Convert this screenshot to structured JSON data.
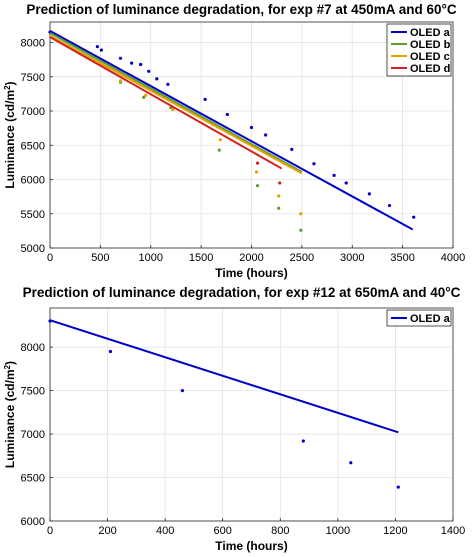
{
  "chart_data": [
    {
      "type": "scatter",
      "title": "Prediction of luminance degradation, for exp #7 at 450mA and 60°C",
      "xlabel": "Time (hours)",
      "ylabel_main": "Luminance (cd/m",
      "ylabel_sup": "2",
      "ylabel_tail": ")",
      "xlim": [
        0,
        4000
      ],
      "ylim": [
        5000,
        8300
      ],
      "xticks": [
        0,
        500,
        1000,
        1500,
        2000,
        2500,
        3000,
        3500,
        4000
      ],
      "yticks": [
        5000,
        5500,
        6000,
        6500,
        7000,
        7500,
        8000
      ],
      "grid": true,
      "legend_position": "top-right",
      "series": [
        {
          "name": "OLED a",
          "color": "#0000c8",
          "fit_line": [
            [
              0,
              8170
            ],
            [
              3600,
              5270
            ]
          ],
          "points": [
            [
              0,
              8150
            ],
            [
              470,
              7940
            ],
            [
              510,
              7890
            ],
            [
              700,
              7770
            ],
            [
              810,
              7700
            ],
            [
              900,
              7680
            ],
            [
              980,
              7580
            ],
            [
              1060,
              7470
            ],
            [
              1170,
              7390
            ],
            [
              1540,
              7170
            ],
            [
              1760,
              6950
            ],
            [
              2000,
              6760
            ],
            [
              2140,
              6650
            ],
            [
              2400,
              6440
            ],
            [
              2620,
              6230
            ],
            [
              2820,
              6060
            ],
            [
              2940,
              5950
            ],
            [
              3170,
              5790
            ],
            [
              3370,
              5620
            ],
            [
              3610,
              5450
            ]
          ]
        },
        {
          "name": "OLED b",
          "color": "#5aa02c",
          "fit_line": [
            [
              0,
              8140
            ],
            [
              2500,
              6110
            ]
          ],
          "points": [
            [
              700,
              7420
            ],
            [
              930,
              7200
            ],
            [
              1200,
              7050
            ],
            [
              1680,
              6430
            ],
            [
              2060,
              5910
            ],
            [
              2270,
              5580
            ],
            [
              2490,
              5260
            ]
          ]
        },
        {
          "name": "OLED c",
          "color": "#e6a000",
          "fit_line": [
            [
              0,
              8100
            ],
            [
              2500,
              6090
            ]
          ],
          "points": [
            [
              700,
              7440
            ],
            [
              950,
              7230
            ],
            [
              1220,
              7020
            ],
            [
              1690,
              6580
            ],
            [
              2050,
              6110
            ],
            [
              2270,
              5760
            ],
            [
              2490,
              5500
            ]
          ]
        },
        {
          "name": "OLED d",
          "color": "#d42020",
          "fit_line": [
            [
              0,
              8080
            ],
            [
              2300,
              6160
            ]
          ],
          "points": [
            [
              2060,
              6240
            ],
            [
              2280,
              5950
            ]
          ]
        }
      ]
    },
    {
      "type": "scatter",
      "title": "Prediction of luminance degradation, for exp #12 at 650mA and 40°C",
      "xlabel": "Time (hours)",
      "ylabel_main": "Luminance (cd/m",
      "ylabel_sup": "2",
      "ylabel_tail": ")",
      "xlim": [
        0,
        1400
      ],
      "ylim": [
        6000,
        8450
      ],
      "xticks": [
        0,
        200,
        400,
        600,
        800,
        1000,
        1200,
        1400
      ],
      "yticks": [
        6000,
        6500,
        7000,
        7500,
        8000
      ],
      "grid": true,
      "legend_position": "top-right",
      "series": [
        {
          "name": "OLED a",
          "color": "#0000c8",
          "fit_line": [
            [
              0,
              8310
            ],
            [
              1210,
              7020
            ]
          ],
          "points": [
            [
              0,
              8300
            ],
            [
              210,
              7950
            ],
            [
              460,
              7500
            ],
            [
              880,
              6920
            ],
            [
              1045,
              6670
            ],
            [
              1210,
              6390
            ]
          ]
        }
      ]
    }
  ]
}
